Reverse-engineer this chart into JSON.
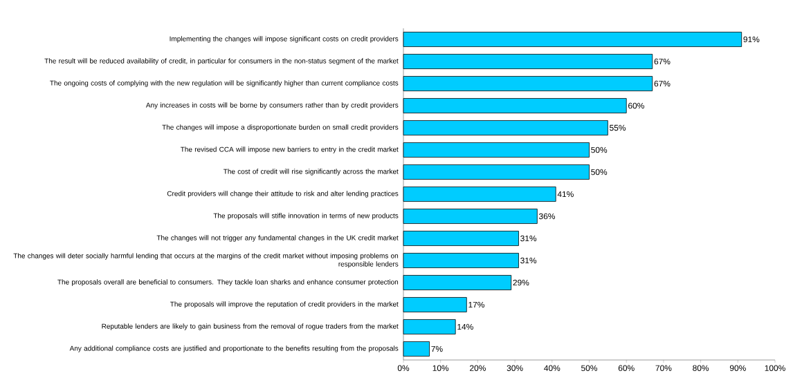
{
  "chart_data": {
    "type": "bar",
    "orientation": "horizontal",
    "categories": [
      "Implementing the changes will impose significant costs on credit providers",
      "The result will be reduced availability of credit, in particular for consumers in the non-status segment of the market",
      "The ongoing costs of complying with the new regulation will be significantly higher than current compliance costs",
      "Any increases in costs will be borne by consumers rather than by credit providers",
      "The changes will impose a disproportionate burden on small credit providers",
      "The revised CCA will impose new barriers to entry in the credit market",
      "The cost of credit will rise significantly across the market",
      "Credit providers will change their attitude to risk and alter lending practices",
      "The proposals will stifle innovation in terms of new products",
      "The changes will not trigger any fundamental changes in the UK credit market",
      "The changes will deter socially harmful lending that occurs at the margins of the credit market without imposing problems on responsible lenders",
      "The proposals overall are beneficial to consumers. They tackle loan sharks and enhance consumer protection",
      "The proposals will improve the reputation of credit providers in the market",
      "Reputable lenders are likely to gain business from the removal of rogue traders from the market",
      "Any additional compliance costs are justified and proportionate to the benefits resulting from the proposals"
    ],
    "values": [
      91,
      67,
      67,
      60,
      55,
      50,
      50,
      41,
      36,
      31,
      31,
      29,
      17,
      14,
      7
    ],
    "value_labels": [
      "91%",
      "67%",
      "67%",
      "60%",
      "55%",
      "50%",
      "50%",
      "41%",
      "36%",
      "31%",
      "31%",
      "29%",
      "17%",
      "14%",
      "7%"
    ],
    "color": "#00ccff",
    "xlim": [
      0,
      100
    ],
    "xticks": [
      {
        "value": 0,
        "label": "0%"
      },
      {
        "value": 10,
        "label": "10%"
      },
      {
        "value": 20,
        "label": "20%"
      },
      {
        "value": 30,
        "label": "30%"
      },
      {
        "value": 40,
        "label": "40%"
      },
      {
        "value": 50,
        "label": "50%"
      },
      {
        "value": 60,
        "label": "60%"
      },
      {
        "value": 70,
        "label": "70%"
      },
      {
        "value": 80,
        "label": "80%"
      },
      {
        "value": 90,
        "label": "90%"
      },
      {
        "value": 100,
        "label": "100%"
      }
    ]
  }
}
